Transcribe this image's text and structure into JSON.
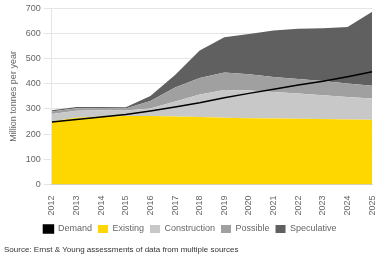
{
  "chart_data": {
    "type": "area",
    "stacked": true,
    "x": [
      2012,
      2013,
      2014,
      2015,
      2016,
      2017,
      2018,
      2019,
      2020,
      2021,
      2022,
      2023,
      2024,
      2025
    ],
    "series": [
      {
        "name": "Existing",
        "type": "area",
        "color": "#FFD700",
        "values": [
          250,
          265,
          270,
          272,
          272,
          270,
          268,
          265,
          263,
          262,
          261,
          260,
          258,
          257
        ]
      },
      {
        "name": "Construction",
        "type": "area",
        "color": "#C8C8C8",
        "values": [
          30,
          28,
          25,
          22,
          30,
          60,
          90,
          110,
          110,
          105,
          100,
          95,
          90,
          85
        ]
      },
      {
        "name": "Possible",
        "type": "area",
        "color": "#A0A0A0",
        "values": [
          10,
          10,
          8,
          8,
          30,
          55,
          65,
          70,
          65,
          60,
          58,
          56,
          53,
          50
        ]
      },
      {
        "name": "Speculative",
        "type": "area",
        "color": "#606060",
        "values": [
          5,
          5,
          5,
          5,
          20,
          50,
          110,
          140,
          160,
          185,
          200,
          210,
          225,
          295
        ]
      },
      {
        "name": "Demand",
        "type": "line",
        "color": "#000000",
        "values": [
          248,
          258,
          268,
          278,
          292,
          308,
          325,
          345,
          362,
          378,
          395,
          410,
          428,
          448
        ]
      }
    ],
    "ylabel": "Million tonnes per year",
    "xlim": [
      2012,
      2025
    ],
    "xticks": [
      2012,
      2013,
      2014,
      2015,
      2016,
      2017,
      2018,
      2019,
      2020,
      2021,
      2022,
      2023,
      2024,
      2025
    ],
    "ylim": [
      0,
      700
    ],
    "yticks": [
      0,
      100,
      200,
      300,
      400,
      500,
      600,
      700
    ],
    "grid": true,
    "legend": "bottom",
    "annotation": "Source: Ernst & Young assessments of data from multiple sources"
  }
}
